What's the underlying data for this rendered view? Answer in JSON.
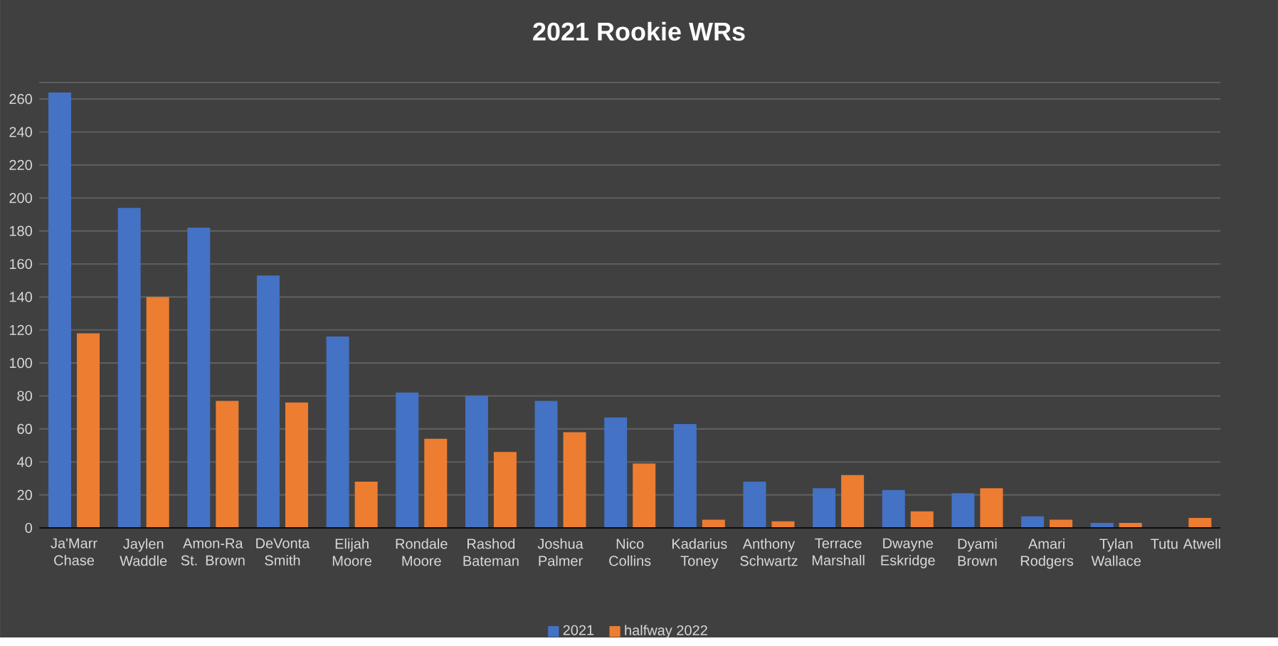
{
  "chart_data": {
    "type": "bar",
    "title": "2021 Rookie WRs",
    "categories": [
      "Ja'Marr Chase",
      "Jaylen Waddle",
      "Amon-Ra St. Brown",
      "DeVonta Smith",
      "Elijah Moore",
      "Rondale Moore",
      "Rashod Bateman",
      "Joshua Palmer",
      "Nico Collins",
      "Kadarius Toney",
      "Anthony Schwartz",
      "Terrace Marshall",
      "Dwayne Eskridge",
      "Dyami Brown",
      "Amari Rodgers",
      "Tylan Wallace",
      "Tutu Atwell"
    ],
    "series": [
      {
        "name": "2021",
        "color": "#4472c4",
        "values": [
          264,
          194,
          182,
          153,
          116,
          82,
          80,
          77,
          67,
          63,
          28,
          24,
          23,
          21,
          7,
          3,
          null
        ]
      },
      {
        "name": "halfway 2022",
        "color": "#ed7d31",
        "values": [
          118,
          140,
          77,
          76,
          28,
          54,
          46,
          58,
          39,
          5,
          4,
          32,
          10,
          24,
          5,
          3,
          6
        ]
      }
    ],
    "ylim": [
      0,
      270
    ],
    "yticks": [
      0,
      20,
      40,
      60,
      80,
      100,
      120,
      140,
      160,
      180,
      200,
      220,
      240,
      260,
      {
        "value": 270,
        "label": null
      }
    ],
    "grid": "y",
    "legend": "bottom"
  }
}
